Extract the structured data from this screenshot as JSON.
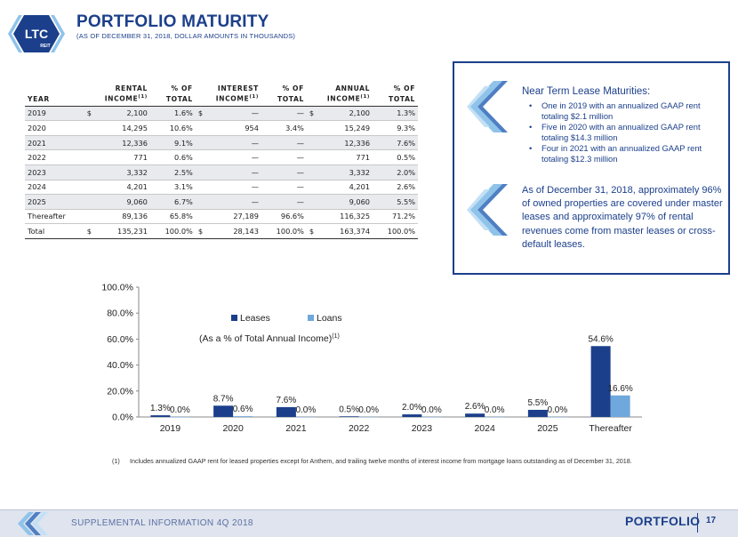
{
  "header": {
    "logo_text": "LTC",
    "logo_subtext": "REIT",
    "title": "PORTFOLIO MATURITY",
    "subtitle": "(AS OF DECEMBER 31, 2018, DOLLAR AMOUNTS IN THOUSANDS)"
  },
  "table": {
    "headers_top": [
      "",
      "RENTAL",
      "% OF",
      "INTEREST",
      "% OF",
      "ANNUAL",
      "% OF"
    ],
    "headers_bottom": [
      "YEAR",
      "INCOME",
      "TOTAL",
      "INCOME",
      "TOTAL",
      "INCOME",
      "TOTAL"
    ],
    "header_sup": "(1)",
    "rows": [
      {
        "year": "2019",
        "rental_cur": "$",
        "rental": "2,100",
        "rental_pct": "1.6%",
        "interest_cur": "$",
        "interest": "—",
        "interest_pct": "—",
        "annual_cur": "$",
        "annual": "2,100",
        "annual_pct": "1.3%"
      },
      {
        "year": "2020",
        "rental_cur": "",
        "rental": "14,295",
        "rental_pct": "10.6%",
        "interest_cur": "",
        "interest": "954",
        "interest_pct": "3.4%",
        "annual_cur": "",
        "annual": "15,249",
        "annual_pct": "9.3%"
      },
      {
        "year": "2021",
        "rental_cur": "",
        "rental": "12,336",
        "rental_pct": "9.1%",
        "interest_cur": "",
        "interest": "—",
        "interest_pct": "—",
        "annual_cur": "",
        "annual": "12,336",
        "annual_pct": "7.6%"
      },
      {
        "year": "2022",
        "rental_cur": "",
        "rental": "771",
        "rental_pct": "0.6%",
        "interest_cur": "",
        "interest": "—",
        "interest_pct": "—",
        "annual_cur": "",
        "annual": "771",
        "annual_pct": "0.5%"
      },
      {
        "year": "2023",
        "rental_cur": "",
        "rental": "3,332",
        "rental_pct": "2.5%",
        "interest_cur": "",
        "interest": "—",
        "interest_pct": "—",
        "annual_cur": "",
        "annual": "3,332",
        "annual_pct": "2.0%"
      },
      {
        "year": "2024",
        "rental_cur": "",
        "rental": "4,201",
        "rental_pct": "3.1%",
        "interest_cur": "",
        "interest": "—",
        "interest_pct": "—",
        "annual_cur": "",
        "annual": "4,201",
        "annual_pct": "2.6%"
      },
      {
        "year": "2025",
        "rental_cur": "",
        "rental": "9,060",
        "rental_pct": "6.7%",
        "interest_cur": "",
        "interest": "—",
        "interest_pct": "—",
        "annual_cur": "",
        "annual": "9,060",
        "annual_pct": "5.5%"
      },
      {
        "year": "Thereafter",
        "rental_cur": "",
        "rental": "89,136",
        "rental_pct": "65.8%",
        "interest_cur": "",
        "interest": "27,189",
        "interest_pct": "96.6%",
        "annual_cur": "",
        "annual": "116,325",
        "annual_pct": "71.2%"
      },
      {
        "year": "Total",
        "rental_cur": "$",
        "rental": "135,231",
        "rental_pct": "100.0%",
        "interest_cur": "$",
        "interest": "28,143",
        "interest_pct": "100.0%",
        "annual_cur": "$",
        "annual": "163,374",
        "annual_pct": "100.0%"
      }
    ]
  },
  "info": {
    "maturity_heading": "Near Term Lease Maturities:",
    "bullet": "•",
    "maturity_items": [
      "One in 2019 with an annualized GAAP rent totaling $2.1 million",
      "Five in 2020 with an annualized GAAP rent totaling $14.3 million",
      "Four in 2021 with an annualized GAAP rent totaling $12.3 million"
    ],
    "summary": "As of December 31, 2018, approximately 96% of owned properties are covered under master leases and approximately 97% of rental revenues come from master leases or cross-default leases.",
    "colors": {
      "accent": "#1b3f8b",
      "chevron_light": "#8fc3ea",
      "chevron_dark": "#4f7fc3"
    }
  },
  "chart_data": {
    "type": "bar",
    "title": "",
    "annotation": "(As a % of Total Annual Income)",
    "annotation_sup": "(1)",
    "categories": [
      "2019",
      "2020",
      "2021",
      "2022",
      "2023",
      "2024",
      "2025",
      "Thereafter"
    ],
    "series": [
      {
        "name": "Leases",
        "values": [
          1.3,
          8.7,
          7.6,
          0.5,
          2.0,
          2.6,
          5.5,
          54.6
        ],
        "labels": [
          "1.3%",
          "8.7%",
          "7.6%",
          "0.5%",
          "2.0%",
          "2.6%",
          "5.5%",
          "54.6%"
        ],
        "color": "#1b3f8b"
      },
      {
        "name": "Loans",
        "values": [
          0.0,
          0.6,
          0.0,
          0.0,
          0.0,
          0.0,
          0.0,
          16.6
        ],
        "labels": [
          "0.0%",
          "0.6%",
          "0.0%",
          "0.0%",
          "0.0%",
          "0.0%",
          "0.0%",
          "16.6%"
        ],
        "color": "#6fa8dc"
      }
    ],
    "ylim": [
      0,
      100
    ],
    "yticks": [
      0,
      20,
      40,
      60,
      80,
      100
    ],
    "ytick_labels": [
      "0.0%",
      "20.0%",
      "40.0%",
      "60.0%",
      "80.0%",
      "100.0%"
    ],
    "grid": false,
    "legend": "top-center"
  },
  "footnote": {
    "number": "(1)",
    "text": "Includes annualized GAAP rent for leased properties except for Anthem, and trailing twelve months of interest income from mortgage loans outstanding as of December 31, 2018."
  },
  "footer": {
    "left_text": "SUPPLEMENTAL INFORMATION  4Q 2018",
    "section": "PORTFOLIO",
    "page": "17"
  }
}
